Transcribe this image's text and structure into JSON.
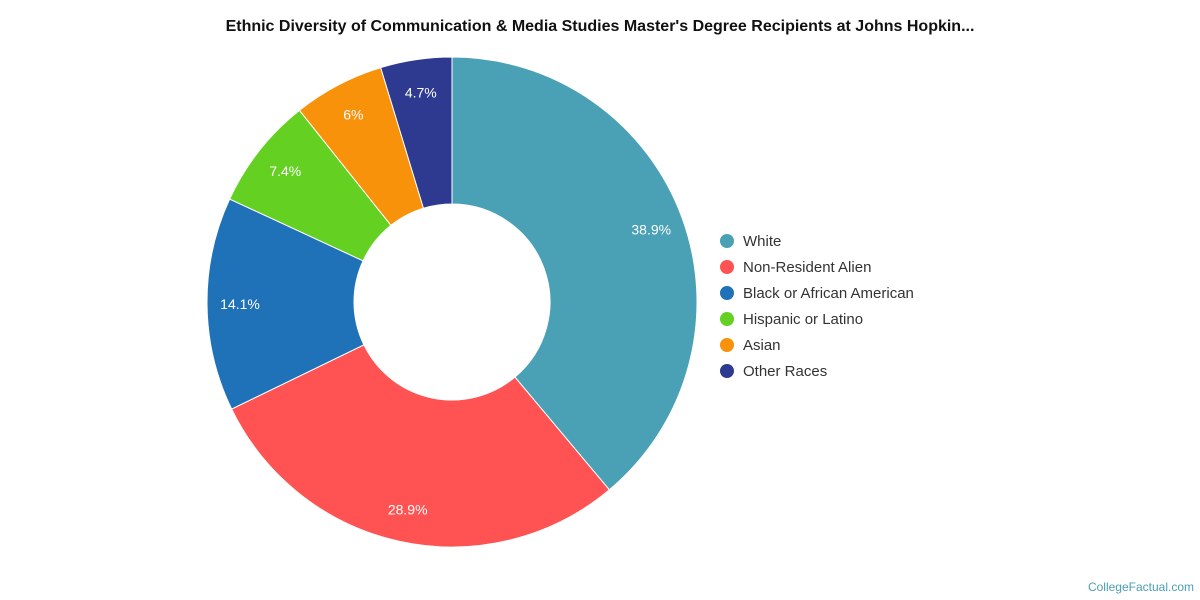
{
  "chart_data": {
    "type": "pie",
    "donut": true,
    "title": "Ethnic Diversity of Communication & Media Studies Master's Degree Recipients at Johns Hopkin...",
    "categories": [
      "White",
      "Non-Resident Alien",
      "Black or African American",
      "Hispanic or Latino",
      "Asian",
      "Other Races"
    ],
    "values": [
      38.9,
      28.9,
      14.1,
      7.4,
      6,
      4.7
    ],
    "labels": [
      "38.9%",
      "28.9%",
      "14.1%",
      "7.4%",
      "6%",
      "4.7%"
    ],
    "colors": [
      "#4aa0b5",
      "#ff5252",
      "#1f72b8",
      "#63d022",
      "#f7920a",
      "#2d3a8f"
    ],
    "legend_position": "right"
  },
  "credit": "CollegeFactual.com"
}
